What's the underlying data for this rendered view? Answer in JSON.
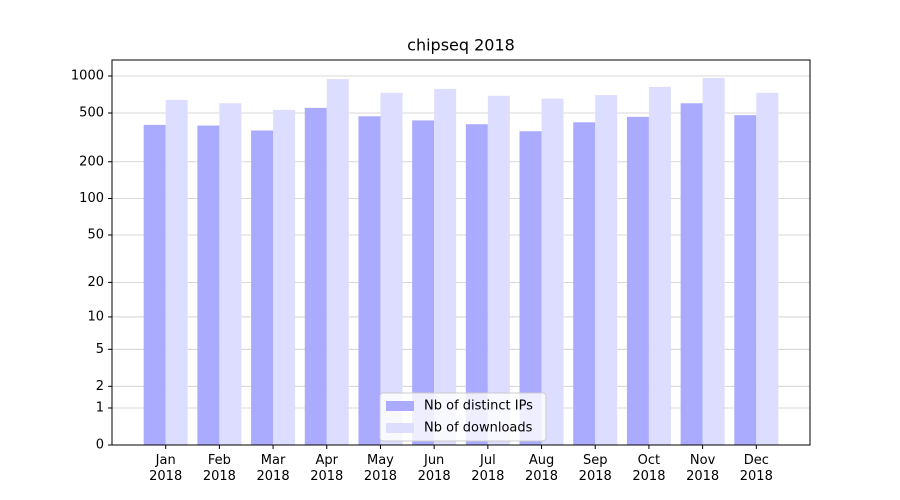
{
  "chart_data": {
    "type": "bar",
    "title": "chipseq 2018",
    "categories": [
      "Jan\n2018",
      "Feb\n2018",
      "Mar\n2018",
      "Apr\n2018",
      "May\n2018",
      "Jun\n2018",
      "Jul\n2018",
      "Aug\n2018",
      "Sep\n2018",
      "Oct\n2018",
      "Nov\n2018",
      "Dec\n2018"
    ],
    "series": [
      {
        "name": "Nb of distinct IPs",
        "color": "#aaaaff",
        "values": [
          400,
          395,
          360,
          550,
          470,
          435,
          405,
          355,
          420,
          465,
          600,
          480
        ]
      },
      {
        "name": "Nb of downloads",
        "color": "#ddddff",
        "values": [
          640,
          600,
          530,
          945,
          730,
          785,
          690,
          655,
          700,
          815,
          965,
          730
        ]
      }
    ],
    "yscale": "log1p",
    "ylim": [
      0,
      1350
    ],
    "yticks": [
      0,
      1,
      2,
      5,
      10,
      20,
      50,
      100,
      200,
      500,
      1000
    ],
    "grid": true,
    "legend": "lower center"
  }
}
